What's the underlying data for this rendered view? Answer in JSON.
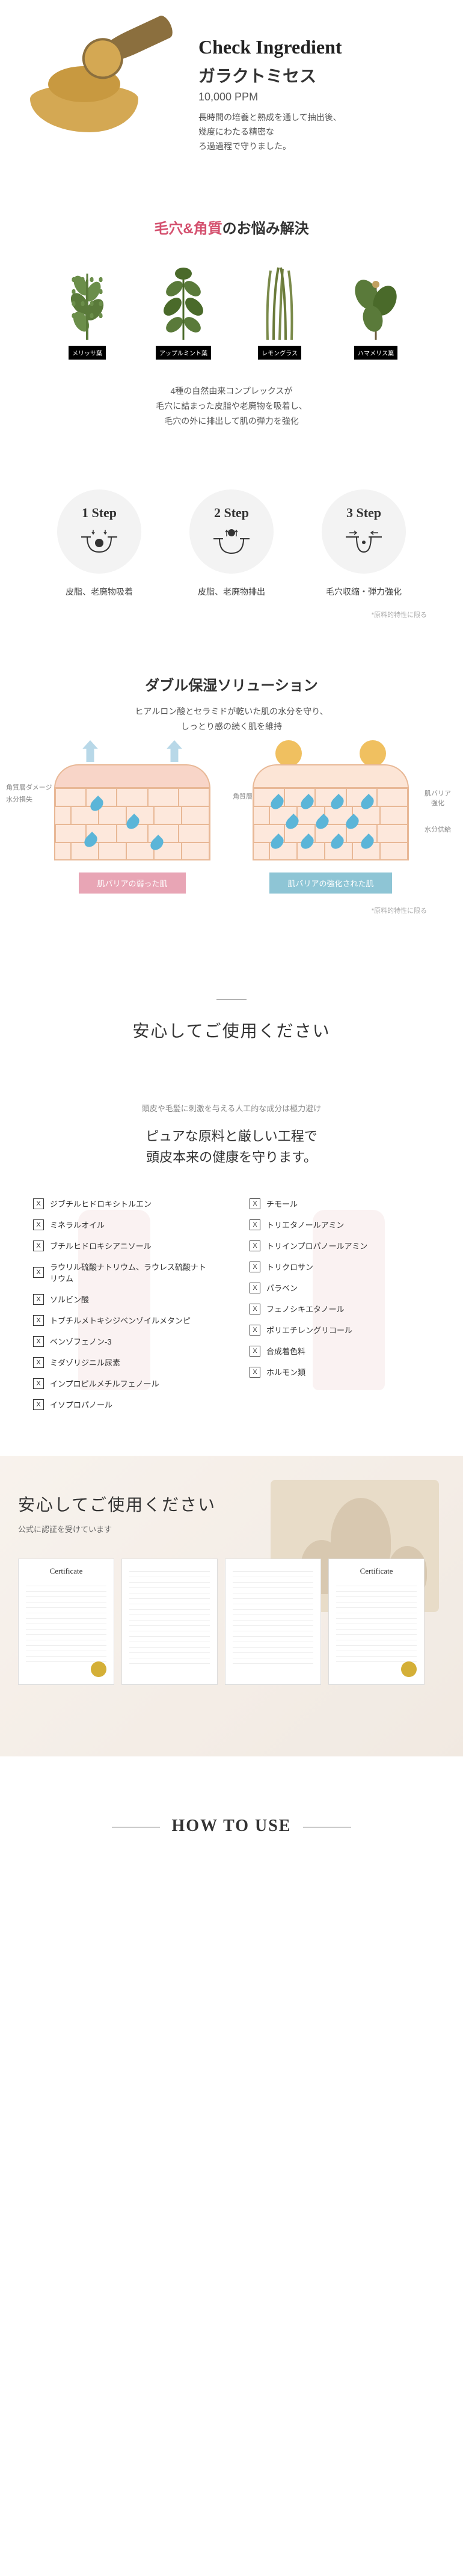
{
  "ingredient": {
    "check": "Check Ingredient",
    "name": "ガラクトミセス",
    "ppm": "10,000 PPM",
    "desc": "長時間の培養と熟成を通して抽出後、\n幾度にわたる精密な\nろ過過程で守りました。"
  },
  "herbs": {
    "title_prefix": "毛穴&角質",
    "title_suffix": "のお悩み解決",
    "items": [
      {
        "label": "メリッサ葉"
      },
      {
        "label": "アップルミント葉"
      },
      {
        "label": "レモングラス"
      },
      {
        "label": "ハマメリス葉"
      }
    ],
    "desc": "4種の自然由来コンプレックスが\n毛穴に詰まった皮脂や老廃物を吸着し、\n毛穴の外に排出して肌の弾力を強化"
  },
  "steps": {
    "items": [
      {
        "num": "1 Step",
        "label": "皮脂、老廃物吸着"
      },
      {
        "num": "2 Step",
        "label": "皮脂、老廃物排出"
      },
      {
        "num": "3 Step",
        "label": "毛穴収縮・弾力強化"
      }
    ],
    "note": "*原料的特性に限る"
  },
  "moisture": {
    "title": "ダブル保湿ソリューション",
    "desc": "ヒアルロン酸とセラミドが乾いた肌の水分を守り、\nしっとり感の続く肌を維持",
    "left": {
      "label1": "角質層ダメージ",
      "label2": "水分損失",
      "label3": "角質層",
      "tag": "肌バリアの弱った肌"
    },
    "right": {
      "label1": "肌バリア\n強化",
      "label2": "水分供給",
      "tag": "肌バリアの強化された肌"
    },
    "note": "*原料的特性に限る"
  },
  "safety": {
    "title": "安心してご使用ください",
    "subtitle": "頭皮や毛髪に刺激を与える人工的な成分は極力避け",
    "headline": "ピュアな原料と厳しい工程で\n頭皮本来の健康を守ります。",
    "left_items": [
      "ジブチルヒドロキシトルエン",
      "ミネラルオイル",
      "ブチルヒドロキシアニソール",
      "ラウリル硫酸ナトリウム、ラウレス硫酸ナトリウム",
      "ソルビン酸",
      "トブチルメトキシジベンゾイルメタンピ",
      "ベンゾフェノン-3",
      "ミダゾリジニル尿素",
      "インプロピルメチルフェノール",
      "イソプロパノール"
    ],
    "right_items": [
      "チモール",
      "トリエタノールアミン",
      "トリインプロパノールアミン",
      "トリクロサン",
      "パラベン",
      "フェノシキエタノール",
      "ポリエチレングリコール",
      "合成着色料",
      "ホルモン類"
    ]
  },
  "cert": {
    "title": "安心してご使用ください",
    "subtitle": "公式に認証を受けています",
    "card_title": "Certificate"
  },
  "howto": {
    "title": "HOW TO USE"
  },
  "colors": {
    "accent_pink": "#d4506e",
    "powder": "#d4a853",
    "weak_tag": "#e8a5b5",
    "strong_tag": "#8ec5d5",
    "droplet": "#5bb5d8"
  }
}
